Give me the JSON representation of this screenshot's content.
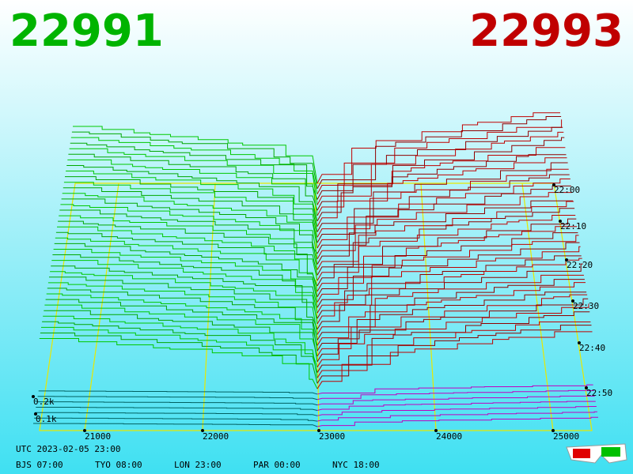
{
  "header": {
    "bid": "22991",
    "ask": "22993"
  },
  "price_axis": [
    "21000",
    "22000",
    "23000",
    "24000",
    "25000"
  ],
  "time_axis": [
    "22:00",
    "22:10",
    "22:20",
    "22:30",
    "22:40",
    "22:50"
  ],
  "depth_axis": [
    "0.2k",
    "0.1k"
  ],
  "footer": {
    "utc": "UTC 2023-02-05 23:00",
    "zones": [
      "BJS 07:00",
      "TYO 08:00",
      "LON 23:00",
      "PAR 00:00",
      "NYC 18:00"
    ]
  }
}
